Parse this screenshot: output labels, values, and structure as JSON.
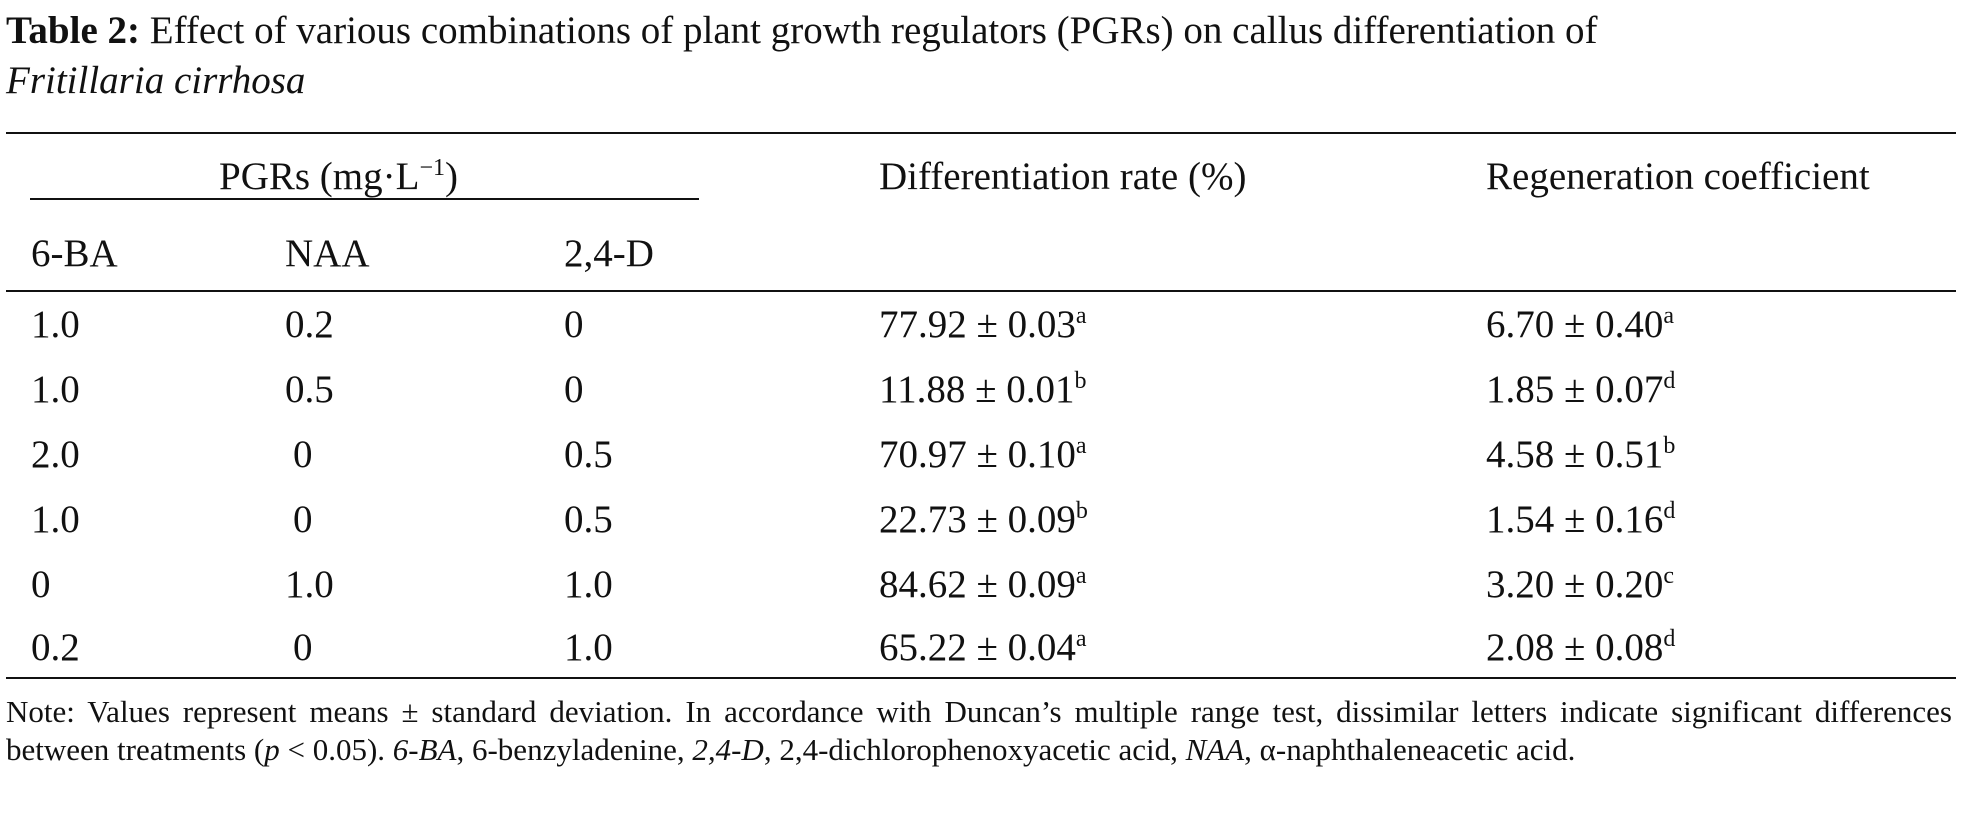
{
  "caption": {
    "label": "Table 2:",
    "text": "Effect of various combinations of plant growth regulators (PGRs) on callus differentiation of",
    "species": "Fritillaria cirrhosa"
  },
  "header": {
    "group_label": "PGRs (mg·L",
    "group_exp": "−1",
    "group_close": ")",
    "col_6ba": "6-BA",
    "col_naa": "NAA",
    "col_24d": "2,4-D",
    "col_diff": "Differentiation rate (%)",
    "col_regen": "Regeneration coefficient"
  },
  "rows": [
    {
      "ba": "1.0",
      "naa": "0.2",
      "d": "0",
      "diff": "77.92 ± 0.03",
      "diff_sup": "a",
      "regen": "6.70 ± 0.40",
      "regen_sup": "a"
    },
    {
      "ba": "1.0",
      "naa": "0.5",
      "d": "0",
      "diff": "11.88 ± 0.01",
      "diff_sup": "b",
      "regen": "1.85 ± 0.07",
      "regen_sup": "d"
    },
    {
      "ba": "2.0",
      "naa": "0",
      "d": "0.5",
      "diff": "70.97 ± 0.10",
      "diff_sup": "a",
      "regen": "4.58 ± 0.51",
      "regen_sup": "b"
    },
    {
      "ba": "1.0",
      "naa": "0",
      "d": "0.5",
      "diff": "22.73 ± 0.09",
      "diff_sup": "b",
      "regen": "1.54 ± 0.16",
      "regen_sup": "d"
    },
    {
      "ba": "0",
      "naa": "1.0",
      "d": "1.0",
      "diff": "84.62 ± 0.09",
      "diff_sup": "a",
      "regen": "3.20 ± 0.20",
      "regen_sup": "c"
    },
    {
      "ba": "0.2",
      "naa": "0",
      "d": "1.0",
      "diff": "65.22 ± 0.04",
      "diff_sup": "a",
      "regen": "2.08 ± 0.08",
      "regen_sup": "d"
    }
  ],
  "note": {
    "part1": "Note: Values represent means ± standard deviation. In accordance with Duncan’s multiple range test, dissimilar letters indicate significant differences between treatments (",
    "p": "p",
    "part2": " < 0.05). ",
    "abbr1": "6-BA",
    "def1": ", 6-benzyladenine, ",
    "abbr2": "2,4-D",
    "def2": ", 2,4-dichlorophenoxyacetic acid, ",
    "abbr3": "NAA",
    "def3": ", α-naphthaleneacetic acid."
  }
}
